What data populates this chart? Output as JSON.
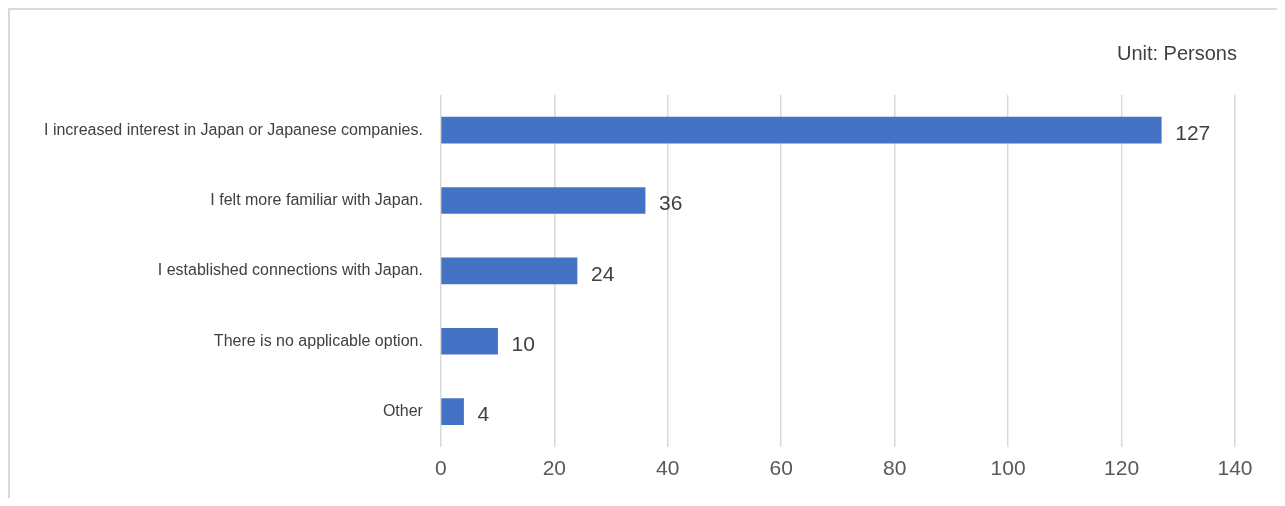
{
  "chart_data": {
    "type": "bar",
    "orientation": "horizontal",
    "annotations": [
      "Unit: Persons"
    ],
    "categories": [
      "I increased interest in Japan or Japanese companies.",
      "I felt more familiar with Japan.",
      "I established connections with Japan.",
      "There is no applicable option.",
      "Other"
    ],
    "values": [
      127,
      36,
      24,
      10,
      4
    ],
    "color": "#4472c4",
    "xlim": [
      0,
      140
    ],
    "xticks": [
      0,
      20,
      40,
      60,
      80,
      100,
      120,
      140
    ],
    "grid": "x",
    "data_labels": true,
    "legend": false
  }
}
